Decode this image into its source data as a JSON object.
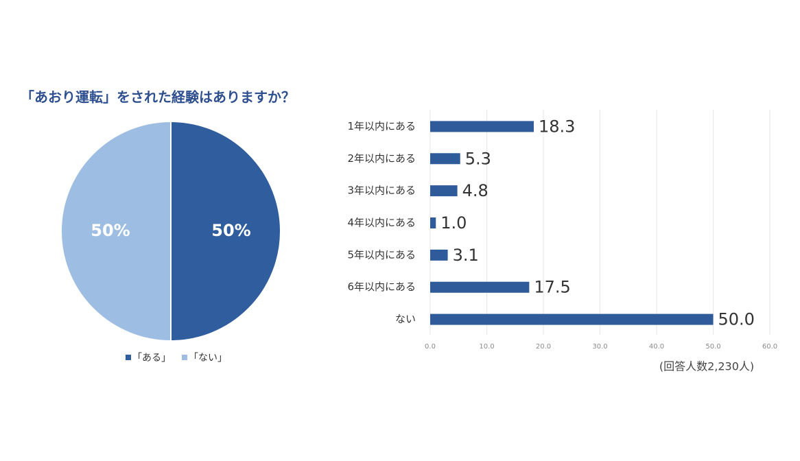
{
  "chart_data": [
    {
      "type": "pie",
      "title": "「あおり運転」をされた経験はありますか？",
      "categories": [
        "「ある」",
        "「ない」"
      ],
      "values": [
        50,
        50
      ],
      "value_labels": [
        "50%",
        "50%"
      ],
      "colors": [
        "#2f5d9e",
        "#9dbde2"
      ]
    },
    {
      "type": "bar",
      "orientation": "horizontal",
      "categories": [
        "1年以内にある",
        "2年以内にある",
        "3年以内にある",
        "4年以内にある",
        "5年以内にある",
        "6年以内にある",
        "ない"
      ],
      "values": [
        18.3,
        5.3,
        4.8,
        1.0,
        3.1,
        17.5,
        50.0
      ],
      "value_labels": [
        "18.3",
        "5.3",
        "4.8",
        "1.0",
        "3.1",
        "17.5",
        "50.0"
      ],
      "color": "#2f5b9a",
      "xlim": [
        0,
        60
      ],
      "xticks": [
        {
          "value": 0,
          "label": "0.0"
        },
        {
          "value": 10,
          "label": "10.0"
        },
        {
          "value": 20,
          "label": "20.0"
        },
        {
          "value": 30,
          "label": "30.0"
        },
        {
          "value": 40,
          "label": "40.0"
        },
        {
          "value": 50,
          "label": "50.0"
        },
        {
          "value": 60,
          "label": "60.0"
        }
      ],
      "grid": true,
      "annotation": "(回答人数2,230人)"
    }
  ]
}
